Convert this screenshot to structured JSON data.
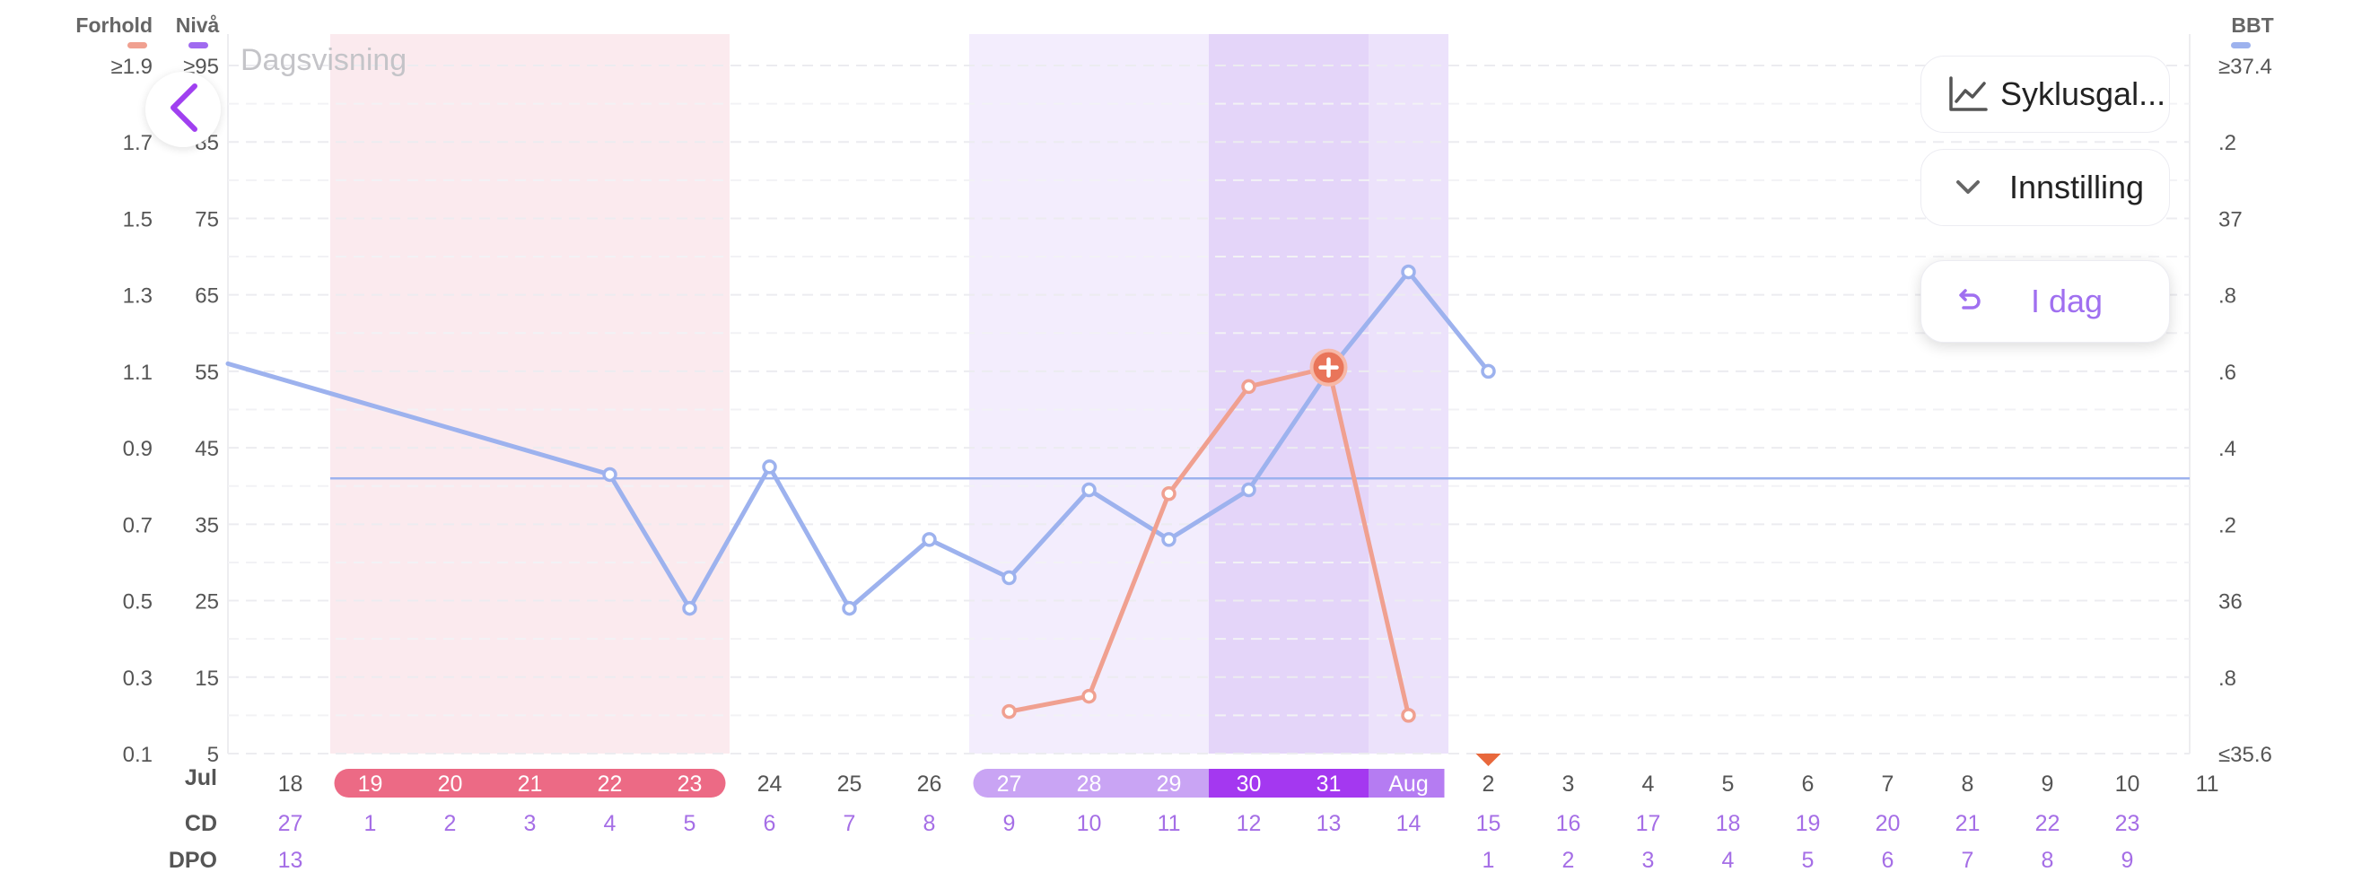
{
  "view_title": "Dagsvisning",
  "legend": {
    "ratio_label": "Forhold",
    "level_label": "Nivå",
    "bbt_label": "BBT",
    "ratio_color": "#f0a090",
    "level_color": "#a06af0",
    "bbt_color": "#9db2ee"
  },
  "buttons": {
    "cycle_label": "Syklusgal...",
    "settings_label": "Innstilling",
    "today_label": "I dag"
  },
  "icons": {
    "back": "chevron-left-icon",
    "cycle": "line-chart-icon",
    "settings": "chevron-down-icon",
    "today": "undo-arrow-icon",
    "today_marker": "triangle-down-icon",
    "peak_marker": "plus-circle-icon"
  },
  "chart_data": {
    "type": "line",
    "axes": {
      "left_ratio": {
        "ticks": [
          "≥1.9",
          "1.7",
          "1.5",
          "1.3",
          "1.1",
          "0.9",
          "0.7",
          "0.5",
          "0.3",
          "0.1"
        ],
        "range": [
          0.1,
          1.9
        ]
      },
      "left_level": {
        "ticks": [
          "≥95",
          "85",
          "75",
          "65",
          "55",
          "45",
          "35",
          "25",
          "15",
          "5"
        ],
        "range": [
          5,
          95
        ]
      },
      "right_bbt": {
        "ticks": [
          "≥37.4",
          ".2",
          "37",
          ".8",
          ".6",
          ".4",
          ".2",
          "36",
          ".8",
          "≤35.6"
        ],
        "range": [
          35.6,
          37.4
        ]
      }
    },
    "x_row_labels": {
      "month": "Jul",
      "cd": "CD",
      "dpo": "DPO"
    },
    "days": [
      {
        "date": "18",
        "cd": "27",
        "dpo": "13"
      },
      {
        "date": "19",
        "cd": "1",
        "dpo": ""
      },
      {
        "date": "20",
        "cd": "2",
        "dpo": ""
      },
      {
        "date": "21",
        "cd": "3",
        "dpo": ""
      },
      {
        "date": "22",
        "cd": "4",
        "dpo": ""
      },
      {
        "date": "23",
        "cd": "5",
        "dpo": ""
      },
      {
        "date": "24",
        "cd": "6",
        "dpo": ""
      },
      {
        "date": "25",
        "cd": "7",
        "dpo": ""
      },
      {
        "date": "26",
        "cd": "8",
        "dpo": ""
      },
      {
        "date": "27",
        "cd": "9",
        "dpo": ""
      },
      {
        "date": "28",
        "cd": "10",
        "dpo": ""
      },
      {
        "date": "29",
        "cd": "11",
        "dpo": ""
      },
      {
        "date": "30",
        "cd": "12",
        "dpo": ""
      },
      {
        "date": "31",
        "cd": "13",
        "dpo": ""
      },
      {
        "date": "Aug",
        "cd": "14",
        "dpo": ""
      },
      {
        "date": "2",
        "cd": "15",
        "dpo": "1"
      },
      {
        "date": "3",
        "cd": "16",
        "dpo": "2"
      },
      {
        "date": "4",
        "cd": "17",
        "dpo": "3"
      },
      {
        "date": "5",
        "cd": "18",
        "dpo": "4"
      },
      {
        "date": "6",
        "cd": "19",
        "dpo": "5"
      },
      {
        "date": "7",
        "cd": "20",
        "dpo": "6"
      },
      {
        "date": "8",
        "cd": "21",
        "dpo": "7"
      },
      {
        "date": "9",
        "cd": "22",
        "dpo": "8"
      },
      {
        "date": "10",
        "cd": "23",
        "dpo": "9"
      },
      {
        "date": "11",
        "cd": "",
        "dpo": ""
      }
    ],
    "period_days": [
      "19",
      "20",
      "21",
      "22",
      "23"
    ],
    "fertile_days": [
      "27",
      "28",
      "29"
    ],
    "peak_days": [
      "30",
      "31"
    ],
    "post_peak_days": [
      "Aug"
    ],
    "today": "2",
    "colors": {
      "period": "#ec6a85",
      "period_band": "#fbeaee",
      "fertile": "#c9a4f4",
      "fertile_band": "#f3edfd",
      "peak": "#a438f0",
      "peak_band": "#e4d5f9",
      "post_peak": "#b57cf2",
      "post_peak_band": "#ece2fb",
      "today_marker": "#e8683c",
      "cd_text": "#a56ee6"
    },
    "series": [
      {
        "name": "BBT",
        "axis": "right_bbt",
        "points": [
          {
            "x": "17",
            "y": 36.62
          },
          {
            "x": "22",
            "y": 36.33
          },
          {
            "x": "23",
            "y": 35.98
          },
          {
            "x": "24",
            "y": 36.35
          },
          {
            "x": "25",
            "y": 35.98
          },
          {
            "x": "26",
            "y": 36.16
          },
          {
            "x": "27",
            "y": 36.06
          },
          {
            "x": "28",
            "y": 36.29
          },
          {
            "x": "29",
            "y": 36.16
          },
          {
            "x": "30",
            "y": 36.29
          },
          {
            "x": "31",
            "y": 36.6
          },
          {
            "x": "Aug",
            "y": 36.86
          },
          {
            "x": "2",
            "y": 36.6
          }
        ]
      },
      {
        "name": "Forhold",
        "axis": "left_ratio",
        "points": [
          {
            "x": "27",
            "y": 0.21
          },
          {
            "x": "28",
            "y": 0.25
          },
          {
            "x": "29",
            "y": 0.78
          },
          {
            "x": "30",
            "y": 1.06
          },
          {
            "x": "31",
            "y": 1.11
          },
          {
            "x": "Aug",
            "y": 0.2
          }
        ]
      }
    ],
    "coverline": 36.32,
    "peak_marker_day": "31"
  }
}
